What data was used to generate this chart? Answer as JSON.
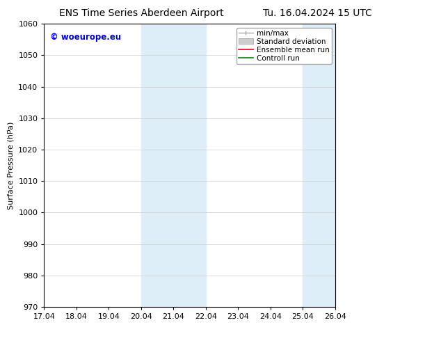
{
  "title_left": "ENS Time Series Aberdeen Airport",
  "title_right": "Tu. 16.04.2024 15 UTC",
  "ylabel": "Surface Pressure (hPa)",
  "ylim": [
    970,
    1060
  ],
  "yticks": [
    970,
    980,
    990,
    1000,
    1010,
    1020,
    1030,
    1040,
    1050,
    1060
  ],
  "xlabels": [
    "17.04",
    "18.04",
    "19.04",
    "20.04",
    "21.04",
    "22.04",
    "23.04",
    "24.04",
    "25.04",
    "26.04"
  ],
  "xvalues": [
    0,
    1,
    2,
    3,
    4,
    5,
    6,
    7,
    8,
    9
  ],
  "shaded_regions": [
    {
      "xmin": 3,
      "xmax": 5,
      "color": "#ddeef8"
    },
    {
      "xmin": 8,
      "xmax": 9,
      "color": "#ddeef8"
    }
  ],
  "watermark_text": "© woeurope.eu",
  "watermark_color": "#0000cc",
  "background_color": "#ffffff",
  "grid_color": "#cccccc",
  "title_fontsize": 10,
  "label_fontsize": 8,
  "tick_fontsize": 8
}
